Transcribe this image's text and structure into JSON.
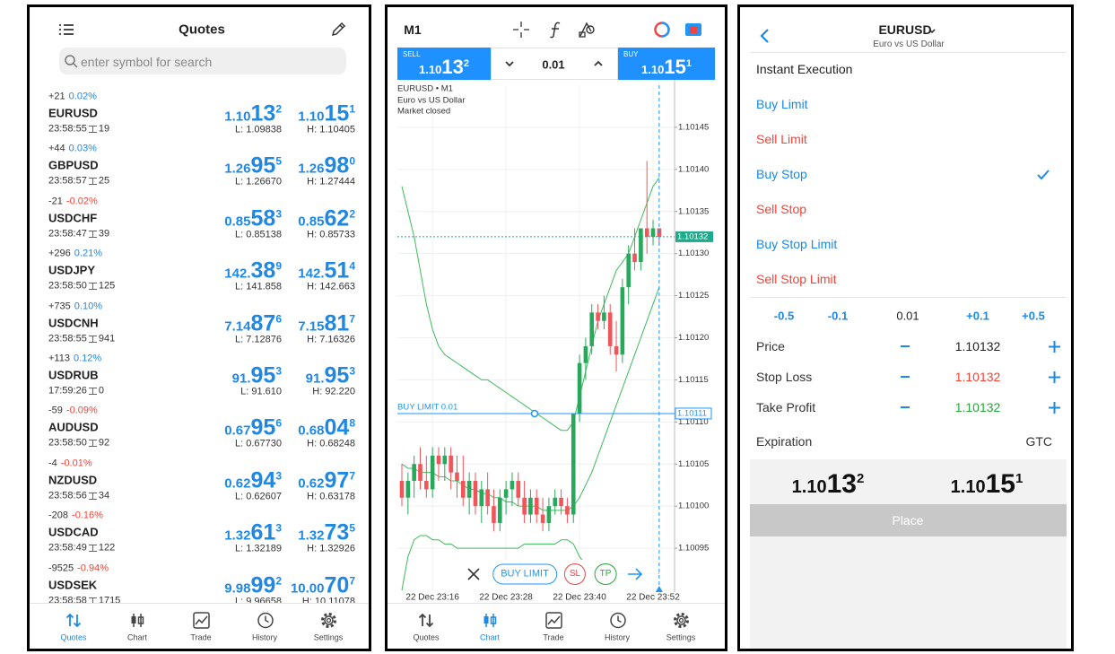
{
  "tabs": [
    "Quotes",
    "Chart",
    "Trade",
    "History",
    "Settings"
  ],
  "quotes_screen": {
    "title": "Quotes",
    "search_placeholder": "enter symbol for search",
    "active_tab": 0,
    "rows": [
      {
        "change_points": "+21",
        "change_percent": "0.02%",
        "symbol": "EURUSD",
        "time": "23:58:55",
        "spread": "19",
        "bid": "1.10132",
        "ask": "1.10151",
        "low": "L: 1.09838",
        "high": "H: 1.10405"
      },
      {
        "change_points": "+44",
        "change_percent": "0.03%",
        "symbol": "GBPUSD",
        "time": "23:58:57",
        "spread": "25",
        "bid": "1.26955",
        "ask": "1.26980",
        "low": "L: 1.26670",
        "high": "H: 1.27444"
      },
      {
        "change_points": "-21",
        "change_percent": "-0.02%",
        "symbol": "USDCHF",
        "time": "23:58:47",
        "spread": "39",
        "bid": "0.85583",
        "ask": "0.85622",
        "low": "L: 0.85138",
        "high": "H: 0.85733"
      },
      {
        "change_points": "+296",
        "change_percent": "0.21%",
        "symbol": "USDJPY",
        "time": "23:58:50",
        "spread": "125",
        "bid": "142.389",
        "ask": "142.514",
        "low": "L: 141.858",
        "high": "H: 142.663"
      },
      {
        "change_points": "+735",
        "change_percent": "0.10%",
        "symbol": "USDCNH",
        "time": "23:58:55",
        "spread": "941",
        "bid": "7.14876",
        "ask": "7.15817",
        "low": "L: 7.12876",
        "high": "H: 7.16326"
      },
      {
        "change_points": "+113",
        "change_percent": "0.12%",
        "symbol": "USDRUB",
        "time": "17:59:26",
        "spread": "0",
        "bid": "91.953",
        "ask": "91.953",
        "low": "L: 91.610",
        "high": "H: 92.220"
      },
      {
        "change_points": "-59",
        "change_percent": "-0.09%",
        "symbol": "AUDUSD",
        "time": "23:58:50",
        "spread": "92",
        "bid": "0.67956",
        "ask": "0.68048",
        "low": "L: 0.67730",
        "high": "H: 0.68248"
      },
      {
        "change_points": "-4",
        "change_percent": "-0.01%",
        "symbol": "NZDUSD",
        "time": "23:58:56",
        "spread": "34",
        "bid": "0.62943",
        "ask": "0.62977",
        "low": "L: 0.62607",
        "high": "H: 0.63178"
      },
      {
        "change_points": "-208",
        "change_percent": "-0.16%",
        "symbol": "USDCAD",
        "time": "23:58:49",
        "spread": "122",
        "bid": "1.32613",
        "ask": "1.32735",
        "low": "L: 1.32189",
        "high": "H: 1.32926"
      },
      {
        "change_points": "-9525",
        "change_percent": "-0.94%",
        "symbol": "USDSEK",
        "time": "23:58:58",
        "spread": "1715",
        "bid": "9.98992",
        "ask": "10.00707",
        "low": "L: 9.96658",
        "high": "H: 10.11078"
      }
    ]
  },
  "chart_screen": {
    "timeframe": "M1",
    "sell_label": "SELL",
    "sell_price": "1.10132",
    "volume": "0.01",
    "buy_label": "BUY",
    "buy_price": "1.10151",
    "active_tab": 1,
    "toolbar": [
      "BUY LIMIT",
      "SL",
      "TP"
    ]
  },
  "chart_data": {
    "type": "candlestick",
    "title": "EURUSD • M1",
    "subtitle": "Euro vs US Dollar",
    "annotations": [
      "Market closed"
    ],
    "x": [
      "22 Dec 23:11",
      "22 Dec 23:12",
      "22 Dec 23:13",
      "22 Dec 23:14",
      "22 Dec 23:15",
      "22 Dec 23:16",
      "22 Dec 23:17",
      "22 Dec 23:18",
      "22 Dec 23:19",
      "22 Dec 23:20",
      "22 Dec 23:21",
      "22 Dec 23:22",
      "22 Dec 23:23",
      "22 Dec 23:24",
      "22 Dec 23:25",
      "22 Dec 23:26",
      "22 Dec 23:27",
      "22 Dec 23:28",
      "22 Dec 23:29",
      "22 Dec 23:30",
      "22 Dec 23:31",
      "22 Dec 23:32",
      "22 Dec 23:33",
      "22 Dec 23:34",
      "22 Dec 23:35",
      "22 Dec 23:36",
      "22 Dec 23:37",
      "22 Dec 23:38",
      "22 Dec 23:39",
      "22 Dec 23:40",
      "22 Dec 23:41",
      "22 Dec 23:42",
      "22 Dec 23:43",
      "22 Dec 23:44",
      "22 Dec 23:45",
      "22 Dec 23:46",
      "22 Dec 23:47",
      "22 Dec 23:48",
      "22 Dec 23:49",
      "22 Dec 23:50",
      "22 Dec 23:51",
      "22 Dec 23:52",
      "22 Dec 23:53"
    ],
    "open": [
      1.10103,
      1.10101,
      1.10103,
      1.10105,
      1.10103,
      1.10102,
      1.10106,
      1.10105,
      1.10106,
      1.10104,
      1.10103,
      1.10101,
      1.10103,
      1.101,
      1.10102,
      1.101,
      1.10098,
      1.10101,
      1.10102,
      1.10103,
      1.10101,
      1.10099,
      1.10101,
      1.10099,
      1.10098,
      1.101,
      1.10101,
      1.101,
      1.10099,
      1.10111,
      1.10117,
      1.10119,
      1.10123,
      1.10122,
      1.10123,
      1.10119,
      1.10118,
      1.10126,
      1.1013,
      1.10129,
      1.10133,
      1.10132,
      1.10133
    ],
    "high": [
      1.10105,
      1.10104,
      1.10106,
      1.10107,
      1.10106,
      1.10107,
      1.10107,
      1.10107,
      1.10107,
      1.10106,
      1.10106,
      1.10104,
      1.10104,
      1.10103,
      1.10104,
      1.10102,
      1.10102,
      1.10103,
      1.10104,
      1.10104,
      1.10103,
      1.10102,
      1.10102,
      1.10101,
      1.10101,
      1.10102,
      1.10102,
      1.10101,
      1.10111,
      1.10118,
      1.1012,
      1.10124,
      1.10124,
      1.10125,
      1.10124,
      1.10122,
      1.10127,
      1.10131,
      1.10133,
      1.10133,
      1.10141,
      1.10134,
      1.10133
    ],
    "low": [
      1.101,
      1.10099,
      1.10101,
      1.10102,
      1.10101,
      1.10101,
      1.10103,
      1.10103,
      1.10102,
      1.10101,
      1.101,
      1.10099,
      1.10099,
      1.10098,
      1.10099,
      1.10097,
      1.10097,
      1.10099,
      1.101,
      1.101,
      1.10098,
      1.10098,
      1.10098,
      1.10097,
      1.10097,
      1.10099,
      1.10099,
      1.10098,
      1.10098,
      1.1011,
      1.10115,
      1.10118,
      1.10121,
      1.10121,
      1.10118,
      1.10116,
      1.10117,
      1.10124,
      1.10128,
      1.10128,
      1.1013,
      1.10131,
      1.10131
    ],
    "close": [
      1.10101,
      1.10103,
      1.10105,
      1.10103,
      1.10102,
      1.10106,
      1.10105,
      1.10106,
      1.10104,
      1.10103,
      1.10101,
      1.10103,
      1.101,
      1.10102,
      1.101,
      1.10098,
      1.10101,
      1.10102,
      1.10103,
      1.10101,
      1.10099,
      1.10101,
      1.10099,
      1.10098,
      1.101,
      1.10101,
      1.101,
      1.10099,
      1.10111,
      1.10117,
      1.10119,
      1.10123,
      1.10122,
      1.10123,
      1.10119,
      1.10118,
      1.10126,
      1.1013,
      1.10129,
      1.10133,
      1.10132,
      1.10133,
      1.10132
    ],
    "up_color": "#27a85a",
    "down_color": "#f0555a",
    "lines": [
      {
        "color": "#3dbb5a",
        "values": [
          1.10138,
          1.10135,
          1.10132,
          1.10128,
          1.10124,
          1.10121,
          1.10119,
          1.10118,
          1.101175,
          1.10117,
          1.101165,
          1.10116,
          1.101155,
          1.10115,
          1.10115,
          1.101145,
          1.10114,
          1.101135,
          1.10113,
          1.101125,
          1.10112,
          1.101115,
          1.10111,
          1.101105,
          1.1011,
          1.101095,
          1.10109,
          1.10109,
          1.1011,
          1.10113,
          1.10116,
          1.10119,
          1.10122,
          1.10124,
          1.10126,
          1.10128,
          1.10129,
          1.1013,
          1.10132,
          1.10134,
          1.10136,
          1.10138,
          1.10139
        ]
      },
      {
        "color": "#3dbb5a",
        "values": [
          1.10105,
          1.101045,
          1.101045,
          1.10104,
          1.10104,
          1.10104,
          1.101035,
          1.101035,
          1.10103,
          1.10103,
          1.101025,
          1.10102,
          1.10102,
          1.101015,
          1.101015,
          1.10101,
          1.10101,
          1.101005,
          1.101005,
          1.101,
          1.101,
          1.101,
          1.101,
          1.100995,
          1.100995,
          1.100995,
          1.100995,
          1.100995,
          1.101,
          1.10101,
          1.101025,
          1.10104,
          1.10106,
          1.10108,
          1.1011,
          1.10112,
          1.10114,
          1.10116,
          1.10118,
          1.1012,
          1.10122,
          1.10124,
          1.10126
        ]
      },
      {
        "color": "#3dbb5a",
        "values": [
          1.1009,
          1.10094,
          1.10096,
          1.100965,
          1.100965,
          1.10096,
          1.10096,
          1.100955,
          1.100955,
          1.10095,
          1.10095,
          1.10095,
          1.10095,
          1.10095,
          1.10095,
          1.10095,
          1.10095,
          1.10095,
          1.10095,
          1.10095,
          1.100955,
          1.100955,
          1.100955,
          1.100955,
          1.100955,
          1.100955,
          1.10096,
          1.10096,
          1.100955,
          1.10094,
          1.10093,
          1.100925,
          1.10092,
          1.10092,
          1.10092,
          1.10092,
          1.10092,
          1.10092,
          1.10092,
          1.10092,
          1.10092,
          1.10092,
          1.10092
        ]
      }
    ],
    "ylim": [
      1.1009,
      1.1015
    ],
    "yticks": [
      1.10145,
      {
        "value": 1.1014,
        "label": "1.10140"
      },
      1.10135,
      {
        "value": 1.1013,
        "label": "1.10130"
      },
      1.10125,
      {
        "value": 1.1012,
        "label": "1.10120"
      },
      1.10115,
      {
        "value": 1.1011,
        "label": "1.10110"
      },
      1.10105,
      {
        "value": 1.101,
        "label": "1.10100"
      },
      1.10095
    ],
    "xticks": [
      "22 Dec 23:16",
      "22 Dec 23:28",
      "22 Dec 23:40",
      "22 Dec 23:52"
    ],
    "grid": true,
    "last_price": 1.10132,
    "last_price_color": "#1faa8c",
    "order_line": {
      "label": "BUY LIMIT 0.01",
      "price": 1.10111,
      "color": "#2196f3"
    }
  },
  "order_screen": {
    "symbol": "EURUSD",
    "description": "Euro vs US Dollar",
    "order_types": [
      {
        "label": "Instant Execution",
        "color": "#222222"
      },
      {
        "label": "Buy Limit",
        "color": "#1e88e5"
      },
      {
        "label": "Sell Limit",
        "color": "#f44336"
      },
      {
        "label": "Buy Stop",
        "color": "#1e88e5"
      },
      {
        "label": "Sell Stop",
        "color": "#f44336"
      },
      {
        "label": "Buy Stop Limit",
        "color": "#1e88e5"
      },
      {
        "label": "Sell Stop Limit",
        "color": "#f44336"
      }
    ],
    "selected": 3,
    "volume_steps": [
      "-0.5",
      "-0.1",
      "0.01",
      "+0.1",
      "+0.5"
    ],
    "fields": [
      {
        "label": "Price",
        "value": "1.10132",
        "color": "#222222"
      },
      {
        "label": "Stop Loss",
        "value": "1.10132",
        "color": "#f44336"
      },
      {
        "label": "Take Profit",
        "value": "1.10132",
        "color": "#27a83a"
      }
    ],
    "expiration_label": "Expiration",
    "expiration": "GTC",
    "bid": "1.10132",
    "ask": "1.10151",
    "button": "Place"
  }
}
